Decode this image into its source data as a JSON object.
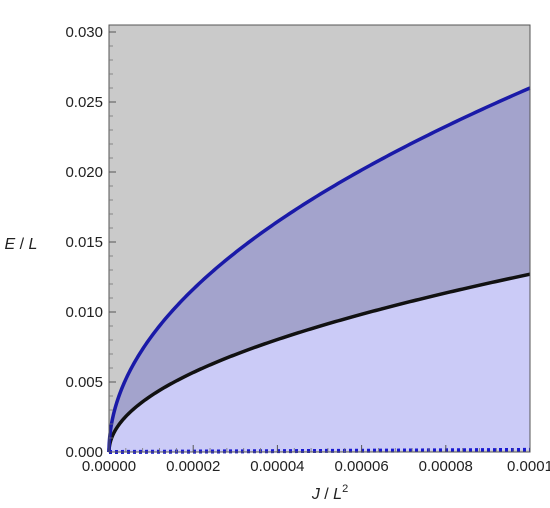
{
  "chart_data": {
    "type": "area",
    "xlabel": {
      "var": "J",
      "sep": " / ",
      "unit": "L",
      "sup": "2"
    },
    "ylabel": {
      "var": "E",
      "sep": " / ",
      "unit": "L"
    },
    "xlim": [
      0,
      0.0001
    ],
    "ylim": [
      0,
      0.0305
    ],
    "x_ticks": [
      {
        "value": 0,
        "label": "0.00000"
      },
      {
        "value": 2e-05,
        "label": "0.00002"
      },
      {
        "value": 4e-05,
        "label": "0.00004"
      },
      {
        "value": 6e-05,
        "label": "0.00006"
      },
      {
        "value": 8e-05,
        "label": "0.00008"
      },
      {
        "value": 0.0001,
        "label": "0.0001"
      }
    ],
    "y_ticks": [
      {
        "value": 0,
        "label": "0.000"
      },
      {
        "value": 0.005,
        "label": "0.005"
      },
      {
        "value": 0.01,
        "label": "0.010"
      },
      {
        "value": 0.015,
        "label": "0.015"
      },
      {
        "value": 0.02,
        "label": "0.020"
      },
      {
        "value": 0.025,
        "label": "0.025"
      },
      {
        "value": 0.03,
        "label": "0.030"
      }
    ],
    "colors": {
      "background_region": "#cacaca",
      "upper_region": "#a3a3cc",
      "lower_region": "#cbcbf7",
      "upper_curve": "#1a1aa8",
      "middle_curve": "#111111",
      "dotted_curve": "#1a1ad0"
    },
    "series": [
      {
        "style": "solid-blue",
        "x": [
          0,
          1e-06,
          2e-06,
          5e-06,
          1e-05,
          2e-05,
          3e-05,
          4e-05,
          5e-05,
          6e-05,
          7e-05,
          8e-05,
          9e-05,
          0.0001
        ],
        "y": [
          0,
          0.0026,
          0.00368,
          0.00581,
          0.00822,
          0.01163,
          0.01424,
          0.01644,
          0.01838,
          0.02014,
          0.02175,
          0.02325,
          0.02466,
          0.026
        ]
      },
      {
        "style": "solid-black",
        "x": [
          0,
          1e-06,
          2e-06,
          5e-06,
          1e-05,
          2e-05,
          3e-05,
          4e-05,
          5e-05,
          6e-05,
          7e-05,
          8e-05,
          9e-05,
          0.0001
        ],
        "y": [
          0,
          0.00127,
          0.0018,
          0.00284,
          0.00402,
          0.00568,
          0.00696,
          0.00803,
          0.00898,
          0.00984,
          0.01063,
          0.01136,
          0.01205,
          0.0127
        ]
      },
      {
        "style": "dotted-blue",
        "x": [
          0,
          2e-05,
          4e-05,
          6e-05,
          8e-05,
          0.0001
        ],
        "y": [
          0,
          3e-05,
          6e-05,
          9e-05,
          0.00012,
          0.00015
        ]
      }
    ],
    "regions": [
      {
        "fill": "lower_region",
        "between": [
          "dotted-blue",
          "solid-black"
        ]
      },
      {
        "fill": "upper_region",
        "between": [
          "solid-black",
          "solid-blue"
        ]
      },
      {
        "fill": "background_region",
        "between": [
          "solid-blue",
          "top"
        ]
      }
    ]
  }
}
